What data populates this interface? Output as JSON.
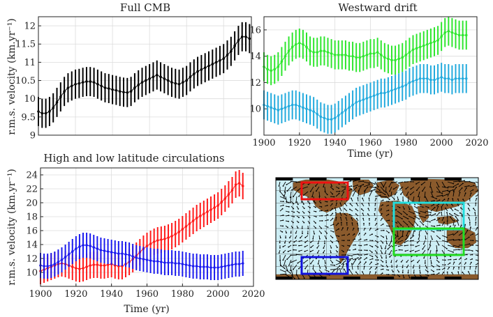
{
  "chart_data": [
    {
      "id": "full-cmb",
      "type": "line",
      "title": "Full CMB",
      "ylabel": "r.m.s. velocity (km.yr⁻¹)",
      "xlabel": "",
      "xlim": [
        1900,
        2015
      ],
      "ylim": [
        9,
        12.25
      ],
      "yticks": [
        "9",
        "9.5",
        "10",
        "10.5",
        "11",
        "11.5",
        "12"
      ],
      "xticks": [],
      "grid": true,
      "series": [
        {
          "color": "#000000",
          "x_start": 1900,
          "x_step": 2,
          "values": [
            9.65,
            9.6,
            9.6,
            9.65,
            9.75,
            9.9,
            10.05,
            10.2,
            10.3,
            10.35,
            10.4,
            10.42,
            10.45,
            10.47,
            10.47,
            10.45,
            10.4,
            10.35,
            10.3,
            10.28,
            10.25,
            10.23,
            10.2,
            10.18,
            10.17,
            10.2,
            10.3,
            10.38,
            10.45,
            10.5,
            10.55,
            10.6,
            10.65,
            10.6,
            10.55,
            10.5,
            10.45,
            10.42,
            10.4,
            10.45,
            10.5,
            10.6,
            10.68,
            10.75,
            10.8,
            10.85,
            10.9,
            10.95,
            11.0,
            11.05,
            11.1,
            11.2,
            11.3,
            11.45,
            11.6,
            11.7,
            11.7,
            11.65
          ],
          "err": 0.4
        }
      ]
    },
    {
      "id": "westward-drift",
      "type": "line",
      "title": "Westward drift",
      "xlabel": "Time (yr)",
      "ylabel": "",
      "xlim": [
        1900,
        2020
      ],
      "ylim": [
        8,
        17
      ],
      "yticks": [
        "10",
        "12",
        "14",
        "16"
      ],
      "xticks": [
        "1900",
        "1920",
        "1940",
        "1960",
        "1980",
        "2000",
        "2020"
      ],
      "grid": true,
      "series": [
        {
          "color": "#2ee62e",
          "x_start": 1900,
          "x_step": 2,
          "values": [
            13.2,
            13.0,
            12.9,
            13.0,
            13.2,
            13.6,
            14.0,
            14.4,
            14.7,
            14.9,
            15.0,
            14.9,
            14.7,
            14.4,
            14.3,
            14.3,
            14.4,
            14.4,
            14.3,
            14.2,
            14.1,
            14.1,
            14.1,
            14.1,
            14.0,
            14.0,
            13.9,
            13.9,
            14.0,
            14.1,
            14.2,
            14.2,
            14.3,
            14.1,
            13.9,
            13.8,
            13.7,
            13.7,
            13.8,
            13.9,
            14.1,
            14.3,
            14.5,
            14.6,
            14.7,
            14.8,
            14.9,
            15.0,
            15.1,
            15.2,
            15.5,
            15.8,
            15.9,
            15.8,
            15.7,
            15.6,
            15.6,
            15.6
          ],
          "err": 1.1
        },
        {
          "color": "#22aadd",
          "x_start": 1900,
          "x_step": 2,
          "values": [
            10.3,
            10.2,
            10.1,
            10.0,
            9.9,
            10.0,
            10.1,
            10.2,
            10.3,
            10.3,
            10.2,
            10.1,
            10.0,
            9.9,
            9.8,
            9.6,
            9.4,
            9.3,
            9.2,
            9.2,
            9.3,
            9.5,
            9.7,
            9.9,
            10.1,
            10.3,
            10.5,
            10.6,
            10.7,
            10.8,
            10.9,
            11.0,
            11.1,
            11.2,
            11.2,
            11.3,
            11.4,
            11.5,
            11.6,
            11.7,
            11.8,
            12.0,
            12.1,
            12.2,
            12.3,
            12.3,
            12.3,
            12.2,
            12.2,
            12.3,
            12.4,
            12.3,
            12.3,
            12.2,
            12.3,
            12.3,
            12.3,
            12.3
          ],
          "err": 1.1
        }
      ]
    },
    {
      "id": "high-low-latitude",
      "type": "line",
      "title": "High and low latitude circulations",
      "xlabel": "Time (yr)",
      "ylabel": "r.m.s. velocity (km.yr⁻¹)",
      "xlim": [
        1900,
        2020
      ],
      "ylim": [
        8,
        25
      ],
      "yticks": [
        "10",
        "12",
        "14",
        "16",
        "18",
        "20",
        "22",
        "24"
      ],
      "xticks": [
        "1900",
        "1920",
        "1940",
        "1960",
        "1980",
        "2000",
        "2020"
      ],
      "grid": true,
      "series": [
        {
          "color": "#ff1a1a",
          "x_start": 1900,
          "x_step": 2,
          "values": [
            10.2,
            10.4,
            10.6,
            10.8,
            11.0,
            11.2,
            11.3,
            11.2,
            11.0,
            10.8,
            10.6,
            10.5,
            10.6,
            10.8,
            11.0,
            11.1,
            11.1,
            11.0,
            11.0,
            11.1,
            11.2,
            11.0,
            10.9,
            10.9,
            11.2,
            11.5,
            11.9,
            12.4,
            12.9,
            13.4,
            13.8,
            14.1,
            14.4,
            14.6,
            14.7,
            14.8,
            15.0,
            15.2,
            15.5,
            15.8,
            16.2,
            16.6,
            17.0,
            17.4,
            17.8,
            18.1,
            18.4,
            18.7,
            19.0,
            19.3,
            19.6,
            20.1,
            20.6,
            21.2,
            21.8,
            22.6,
            22.8,
            22.4
          ],
          "err": 1.9
        },
        {
          "color": "#1a1aee",
          "x_start": 1900,
          "x_step": 2,
          "values": [
            11.0,
            10.9,
            10.9,
            11.0,
            11.2,
            11.5,
            11.8,
            12.2,
            12.6,
            13.0,
            13.4,
            13.7,
            13.9,
            13.9,
            13.8,
            13.6,
            13.4,
            13.2,
            13.1,
            13.0,
            12.9,
            12.8,
            12.7,
            12.7,
            12.6,
            12.5,
            12.3,
            12.1,
            12.0,
            11.9,
            11.8,
            11.7,
            11.6,
            11.6,
            11.5,
            11.4,
            11.4,
            11.4,
            11.3,
            11.3,
            11.2,
            11.1,
            11.0,
            10.9,
            10.9,
            10.8,
            10.8,
            10.8,
            10.7,
            10.7,
            10.7,
            10.8,
            10.9,
            11.0,
            11.1,
            11.2,
            11.2,
            11.3
          ],
          "err": 1.8
        }
      ]
    }
  ],
  "map_panel": {
    "land_color": "#8a5a2c",
    "ocean_color": "#cdeef5",
    "boxes": [
      {
        "name": "high-latitude-north",
        "color": "#ee1111"
      },
      {
        "name": "westward-drift-west",
        "color": "#22dddd"
      },
      {
        "name": "westward-drift-east",
        "color": "#22dd22"
      },
      {
        "name": "high-latitude-south",
        "color": "#1111dd"
      }
    ]
  }
}
